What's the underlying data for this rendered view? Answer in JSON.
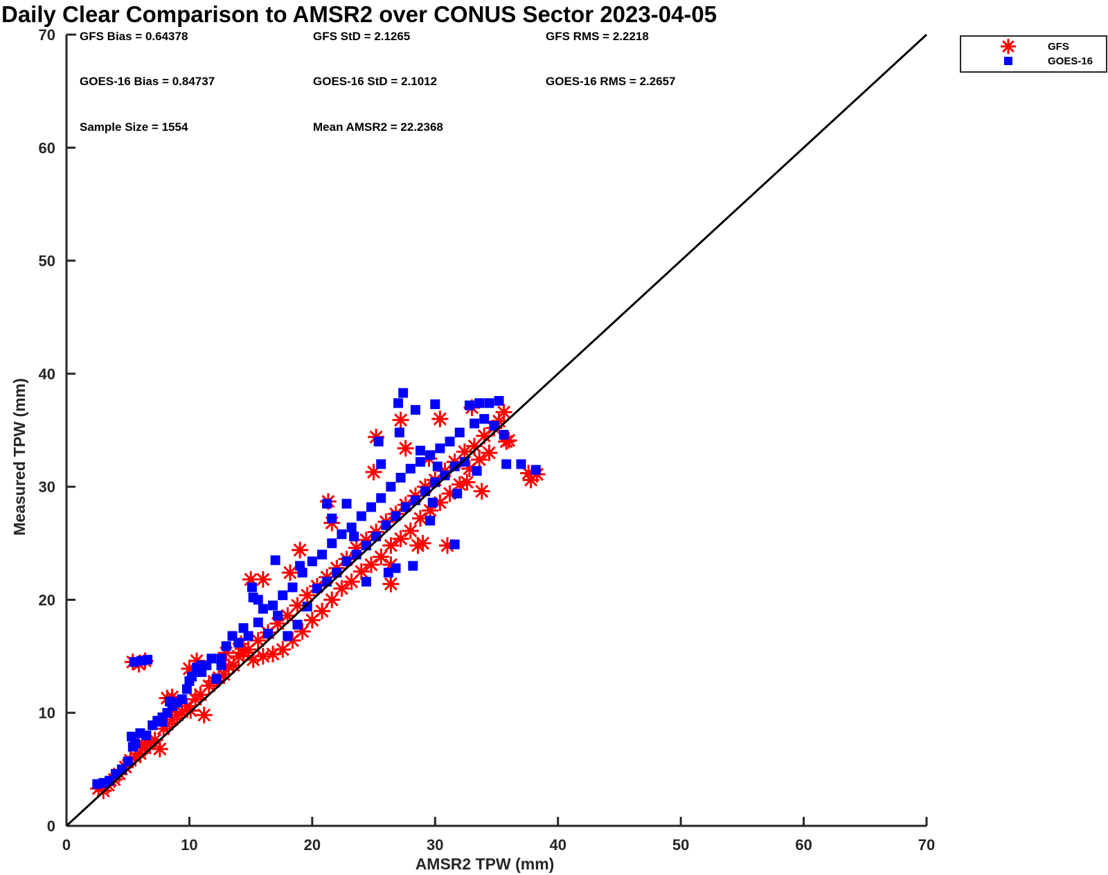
{
  "chart_data": {
    "type": "scatter",
    "title": "Daily Clear Comparison to AMSR2 over CONUS Sector 2023-04-05",
    "xlabel": "AMSR2 TPW (mm)",
    "ylabel": "Measured TPW (mm)",
    "xlim": [
      0,
      70
    ],
    "ylim": [
      0,
      70
    ],
    "xticks": [
      "0",
      "10",
      "20",
      "30",
      "40",
      "50",
      "60",
      "70"
    ],
    "yticks": [
      "0",
      "10",
      "20",
      "30",
      "40",
      "50",
      "60",
      "70"
    ],
    "grid": false,
    "legend_position": "top-right (outside plot)",
    "reference_line": {
      "x": [
        0,
        70
      ],
      "y": [
        0,
        70
      ],
      "color": "#000000"
    },
    "annotations": [
      "GFS Bias = 0.64378",
      "GFS StD = 2.1265",
      "GFS RMS = 2.2218",
      "GOES-16 Bias = 0.84737",
      "GOES-16 StD = 2.1012",
      "GOES-16 RMS = 2.2657",
      "Sample Size = 1554",
      "Mean AMSR2 = 22.2368"
    ],
    "series": [
      {
        "name": "GFS",
        "marker": "asterisk",
        "color": "#ff0000",
        "points": [
          [
            2.6,
            3.3
          ],
          [
            3.0,
            3.1
          ],
          [
            3.4,
            3.6
          ],
          [
            3.9,
            4.1
          ],
          [
            4.3,
            4.6
          ],
          [
            4.8,
            5.2
          ],
          [
            5.2,
            5.8
          ],
          [
            5.6,
            6.1
          ],
          [
            6.0,
            6.4
          ],
          [
            6.4,
            6.9
          ],
          [
            6.8,
            7.3
          ],
          [
            7.2,
            7.6
          ],
          [
            7.6,
            6.8
          ],
          [
            7.9,
            8.6
          ],
          [
            8.2,
            9.0
          ],
          [
            8.6,
            9.4
          ],
          [
            9.0,
            9.8
          ],
          [
            9.4,
            10.1
          ],
          [
            9.8,
            10.6
          ],
          [
            10.1,
            10.2
          ],
          [
            10.5,
            11.2
          ],
          [
            10.9,
            11.6
          ],
          [
            11.2,
            9.8
          ],
          [
            11.6,
            12.4
          ],
          [
            12.0,
            12.8
          ],
          [
            12.4,
            13.1
          ],
          [
            12.8,
            13.4
          ],
          [
            13.2,
            14.1
          ],
          [
            13.6,
            14.2
          ],
          [
            14.0,
            15.0
          ],
          [
            14.4,
            15.3
          ],
          [
            14.8,
            15.6
          ],
          [
            15.2,
            14.7
          ],
          [
            15.6,
            16.4
          ],
          [
            16.0,
            15.0
          ],
          [
            16.4,
            17.1
          ],
          [
            16.8,
            15.2
          ],
          [
            17.2,
            17.9
          ],
          [
            17.6,
            15.6
          ],
          [
            18.0,
            18.6
          ],
          [
            18.4,
            16.4
          ],
          [
            18.8,
            19.5
          ],
          [
            19.2,
            17.2
          ],
          [
            19.6,
            20.4
          ],
          [
            20.0,
            18.2
          ],
          [
            20.4,
            21.2
          ],
          [
            20.8,
            19.0
          ],
          [
            21.2,
            22.0
          ],
          [
            21.6,
            20.0
          ],
          [
            22.0,
            22.8
          ],
          [
            22.4,
            21.0
          ],
          [
            22.8,
            23.6
          ],
          [
            23.2,
            21.6
          ],
          [
            23.6,
            24.6
          ],
          [
            24.0,
            22.5
          ],
          [
            24.4,
            25.3
          ],
          [
            24.8,
            23.1
          ],
          [
            25.2,
            26.0
          ],
          [
            25.6,
            23.8
          ],
          [
            26.0,
            26.9
          ],
          [
            26.4,
            24.8
          ],
          [
            26.8,
            27.6
          ],
          [
            27.2,
            25.4
          ],
          [
            27.6,
            28.4
          ],
          [
            28.0,
            26.1
          ],
          [
            28.4,
            29.2
          ],
          [
            28.8,
            27.2
          ],
          [
            29.2,
            30.0
          ],
          [
            29.6,
            27.9
          ],
          [
            30.0,
            30.6
          ],
          [
            30.4,
            28.6
          ],
          [
            30.8,
            31.4
          ],
          [
            31.2,
            29.4
          ],
          [
            31.6,
            32.2
          ],
          [
            32.0,
            30.2
          ],
          [
            32.4,
            33.1
          ],
          [
            32.8,
            31.6
          ],
          [
            33.2,
            33.6
          ],
          [
            33.6,
            32.4
          ],
          [
            34.0,
            34.5
          ],
          [
            34.4,
            33.0
          ],
          [
            34.8,
            35.2
          ],
          [
            35.2,
            35.8
          ],
          [
            35.6,
            36.6
          ],
          [
            35.8,
            34.0
          ],
          [
            33.8,
            29.6
          ],
          [
            32.6,
            30.4
          ],
          [
            31.0,
            24.8
          ],
          [
            29.0,
            25.0
          ],
          [
            27.2,
            35.9
          ],
          [
            27.6,
            33.4
          ],
          [
            26.4,
            23.1
          ],
          [
            26.4,
            21.4
          ],
          [
            25.2,
            34.4
          ],
          [
            25.0,
            31.3
          ],
          [
            21.3,
            28.7
          ],
          [
            21.6,
            26.8
          ],
          [
            19.0,
            24.4
          ],
          [
            18.2,
            22.4
          ],
          [
            16.0,
            21.8
          ],
          [
            15.0,
            21.8
          ],
          [
            14.2,
            16.1
          ],
          [
            13.0,
            15.3
          ],
          [
            10.6,
            14.6
          ],
          [
            10.0,
            13.9
          ],
          [
            8.2,
            11.3
          ],
          [
            8.6,
            11.4
          ],
          [
            5.4,
            14.5
          ],
          [
            5.9,
            14.3
          ],
          [
            6.4,
            14.6
          ],
          [
            5.8,
            7.2
          ],
          [
            6.5,
            7.4
          ],
          [
            37.8,
            30.6
          ],
          [
            38.3,
            31.1
          ],
          [
            37.6,
            31.2
          ],
          [
            36.0,
            34.1
          ],
          [
            33.0,
            37.0
          ],
          [
            30.4,
            36.0
          ],
          [
            29.5,
            32.5
          ],
          [
            28.6,
            24.8
          ]
        ]
      },
      {
        "name": "GOES-16",
        "marker": "square",
        "color": "#0000ff",
        "points": [
          [
            2.5,
            3.7
          ],
          [
            3.0,
            3.8
          ],
          [
            3.5,
            4.0
          ],
          [
            4.0,
            4.6
          ],
          [
            4.5,
            5.0
          ],
          [
            5.0,
            5.7
          ],
          [
            5.3,
            7.9
          ],
          [
            5.6,
            7.3
          ],
          [
            6.0,
            8.2
          ],
          [
            6.5,
            8.0
          ],
          [
            7.0,
            8.9
          ],
          [
            7.4,
            9.3
          ],
          [
            7.8,
            9.6
          ],
          [
            8.2,
            10.0
          ],
          [
            8.6,
            10.6
          ],
          [
            9.0,
            10.9
          ],
          [
            9.4,
            11.2
          ],
          [
            9.8,
            12.1
          ],
          [
            10.2,
            13.2
          ],
          [
            10.6,
            14.0
          ],
          [
            11.0,
            13.6
          ],
          [
            11.4,
            14.2
          ],
          [
            11.8,
            14.8
          ],
          [
            12.2,
            13.0
          ],
          [
            12.6,
            14.8
          ],
          [
            13.0,
            15.9
          ],
          [
            13.5,
            16.8
          ],
          [
            14.0,
            16.2
          ],
          [
            14.4,
            17.5
          ],
          [
            14.8,
            16.8
          ],
          [
            15.2,
            20.2
          ],
          [
            15.6,
            18.0
          ],
          [
            16.0,
            19.2
          ],
          [
            16.4,
            17.0
          ],
          [
            16.8,
            19.5
          ],
          [
            17.2,
            18.6
          ],
          [
            17.6,
            20.4
          ],
          [
            18.0,
            16.8
          ],
          [
            18.4,
            21.1
          ],
          [
            18.8,
            17.8
          ],
          [
            19.2,
            22.4
          ],
          [
            19.6,
            19.4
          ],
          [
            20.0,
            23.4
          ],
          [
            20.4,
            21.0
          ],
          [
            20.8,
            24.0
          ],
          [
            21.2,
            21.6
          ],
          [
            21.6,
            25.0
          ],
          [
            22.0,
            22.4
          ],
          [
            22.4,
            25.8
          ],
          [
            22.8,
            23.4
          ],
          [
            23.2,
            26.4
          ],
          [
            23.6,
            24.0
          ],
          [
            24.0,
            27.4
          ],
          [
            24.4,
            24.8
          ],
          [
            24.8,
            28.2
          ],
          [
            25.2,
            25.6
          ],
          [
            25.6,
            29.0
          ],
          [
            26.0,
            26.6
          ],
          [
            26.4,
            30.0
          ],
          [
            26.8,
            27.4
          ],
          [
            27.2,
            30.8
          ],
          [
            27.6,
            28.2
          ],
          [
            28.0,
            31.6
          ],
          [
            28.4,
            28.8
          ],
          [
            28.8,
            32.2
          ],
          [
            29.2,
            29.6
          ],
          [
            29.6,
            32.8
          ],
          [
            30.0,
            30.4
          ],
          [
            30.4,
            33.4
          ],
          [
            30.8,
            31.0
          ],
          [
            31.2,
            34.0
          ],
          [
            31.6,
            31.8
          ],
          [
            32.0,
            34.8
          ],
          [
            32.4,
            32.2
          ],
          [
            32.8,
            37.2
          ],
          [
            33.2,
            35.6
          ],
          [
            33.6,
            37.4
          ],
          [
            34.0,
            36.0
          ],
          [
            34.4,
            37.4
          ],
          [
            34.8,
            35.4
          ],
          [
            35.2,
            37.6
          ],
          [
            35.6,
            34.6
          ],
          [
            35.8,
            32.0
          ],
          [
            37.0,
            32.0
          ],
          [
            38.2,
            31.5
          ],
          [
            33.4,
            31.4
          ],
          [
            31.6,
            24.9
          ],
          [
            29.6,
            27.0
          ],
          [
            28.2,
            23.0
          ],
          [
            27.4,
            38.3
          ],
          [
            27.0,
            37.4
          ],
          [
            27.1,
            34.8
          ],
          [
            28.4,
            36.8
          ],
          [
            30.0,
            37.3
          ],
          [
            25.4,
            34.0
          ],
          [
            25.6,
            32.0
          ],
          [
            26.2,
            22.4
          ],
          [
            21.2,
            28.5
          ],
          [
            22.8,
            28.5
          ],
          [
            21.6,
            27.2
          ],
          [
            17.0,
            23.5
          ],
          [
            19.0,
            23.0
          ],
          [
            15.1,
            21.1
          ],
          [
            15.6,
            20.0
          ],
          [
            12.6,
            14.2
          ],
          [
            11.0,
            14.2
          ],
          [
            10.0,
            12.8
          ],
          [
            8.4,
            11.0
          ],
          [
            5.5,
            14.5
          ],
          [
            6.1,
            14.6
          ],
          [
            6.6,
            14.7
          ],
          [
            5.4,
            7.0
          ],
          [
            7.8,
            9.2
          ],
          [
            24.4,
            21.6
          ],
          [
            26.8,
            22.8
          ],
          [
            29.8,
            28.6
          ],
          [
            31.8,
            29.4
          ],
          [
            30.2,
            31.8
          ],
          [
            28.8,
            33.2
          ],
          [
            23.4,
            25.6
          ]
        ]
      }
    ]
  }
}
